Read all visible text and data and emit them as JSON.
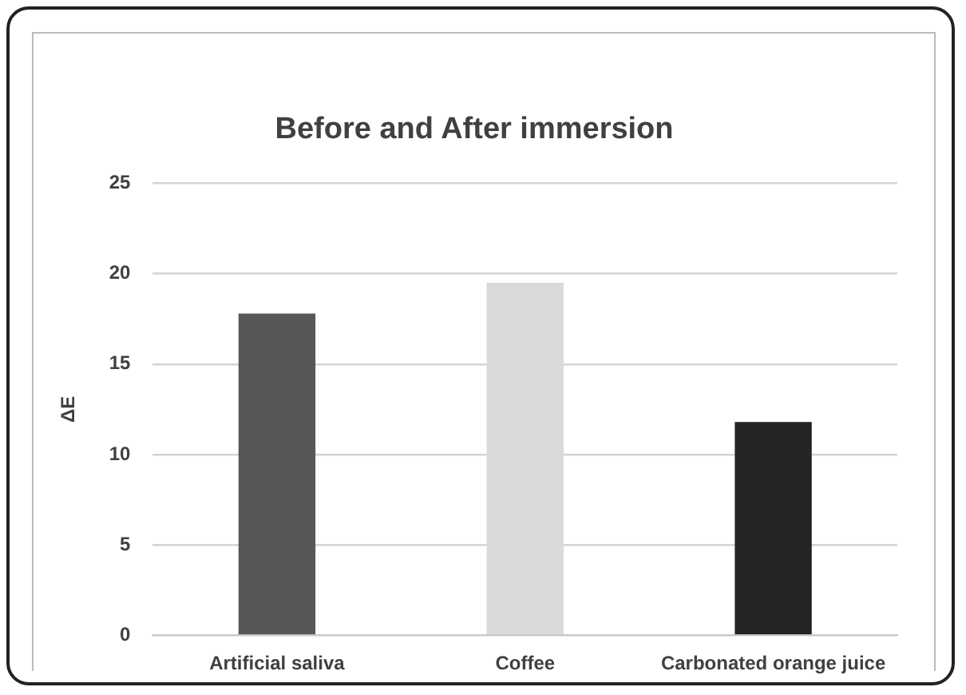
{
  "chart_data": {
    "type": "bar",
    "title": "Before and After immersion",
    "ylabel": "ΔE",
    "categories": [
      "Artificial saliva",
      "Coffee",
      "Carbonated orange juice"
    ],
    "values": [
      17.8,
      19.5,
      11.8
    ],
    "colors": [
      "#555759",
      "#d9dadc",
      "#252324"
    ],
    "ylim": [
      0,
      25
    ],
    "yticks": [
      0,
      5,
      10,
      15,
      20,
      25
    ],
    "grid": "y",
    "legend": false
  }
}
